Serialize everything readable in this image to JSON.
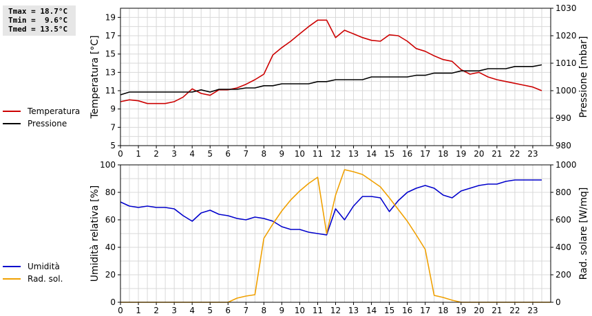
{
  "stats": {
    "tmax": "Tmax = 18.7°C",
    "tmin": "Tmin =  9.6°C",
    "tmed": "Tmed = 13.5°C"
  },
  "legend_top": [
    {
      "label": "Temperatura",
      "color": "#cc0000"
    },
    {
      "label": "Pressione",
      "color": "#000000"
    }
  ],
  "legend_bottom": [
    {
      "label": "Umidità",
      "color": "#0000cc"
    },
    {
      "label": "Rad. sol.",
      "color": "#f0a000"
    }
  ],
  "chart_data": [
    {
      "type": "line",
      "xlabel": "",
      "xlim": [
        0,
        24
      ],
      "xticks": [
        "0",
        "1",
        "2",
        "3",
        "4",
        "5",
        "6",
        "7",
        "8",
        "9",
        "10",
        "11",
        "12",
        "13",
        "14",
        "15",
        "16",
        "17",
        "18",
        "19",
        "20",
        "21",
        "22",
        "23"
      ],
      "ylabel_left": "Temperatura [°C]",
      "ylim_left": [
        5,
        20
      ],
      "yticks_left": [
        "5",
        "7",
        "9",
        "11",
        "13",
        "15",
        "17",
        "19"
      ],
      "ylabel_right": "Pressione [mbar]",
      "ylim_right": [
        980,
        1030
      ],
      "yticks_right": [
        "980",
        "990",
        "1000",
        "1010",
        "1020",
        "1030"
      ],
      "grid": true,
      "series": [
        {
          "name": "Temperatura",
          "axis": "left",
          "color": "#cc0000",
          "x": [
            0,
            0.5,
            1,
            1.5,
            2,
            2.5,
            3,
            3.5,
            4,
            4.5,
            5,
            5.5,
            6,
            6.5,
            7,
            7.5,
            8,
            8.5,
            9,
            9.5,
            10,
            10.5,
            11,
            11.5,
            12,
            12.5,
            13,
            13.5,
            14,
            14.5,
            15,
            15.5,
            16,
            16.5,
            17,
            17.5,
            18,
            18.5,
            19,
            19.5,
            20,
            20.5,
            21,
            21.5,
            22,
            22.5,
            23,
            23.5
          ],
          "values": [
            9.8,
            10.0,
            9.9,
            9.6,
            9.6,
            9.6,
            9.8,
            10.3,
            11.2,
            10.7,
            10.5,
            11.1,
            11.1,
            11.3,
            11.7,
            12.2,
            12.8,
            14.9,
            15.7,
            16.4,
            17.2,
            18.0,
            18.7,
            18.7,
            16.8,
            17.6,
            17.2,
            16.8,
            16.5,
            16.4,
            17.1,
            17.0,
            16.4,
            15.6,
            15.3,
            14.8,
            14.4,
            14.2,
            13.3,
            12.8,
            13.0,
            12.5,
            12.2,
            12.0,
            11.8,
            11.6,
            11.4,
            11.0
          ]
        },
        {
          "name": "Pressione",
          "axis": "right",
          "color": "#000000",
          "x": [
            0,
            0.5,
            1,
            1.5,
            2,
            2.5,
            3,
            3.5,
            4,
            4.5,
            5,
            5.5,
            6,
            6.5,
            7,
            7.5,
            8,
            8.5,
            9,
            9.5,
            10,
            10.5,
            11,
            11.5,
            12,
            12.5,
            13,
            13.5,
            14,
            14.5,
            15,
            15.5,
            16,
            16.5,
            17,
            17.5,
            18,
            18.5,
            19,
            19.5,
            20,
            20.5,
            21,
            21.5,
            22,
            22.5,
            23,
            23.5
          ],
          "values": [
            998.5,
            999.5,
            999.5,
            999.5,
            999.5,
            999.5,
            999.5,
            999.5,
            999.5,
            1000.3,
            999.5,
            1000.5,
            1000.5,
            1000.5,
            1001,
            1001,
            1001.8,
            1001.8,
            1002.5,
            1002.5,
            1002.5,
            1002.5,
            1003.3,
            1003.3,
            1004,
            1004,
            1004,
            1004,
            1005,
            1005,
            1005,
            1005,
            1005,
            1005.6,
            1005.6,
            1006.4,
            1006.4,
            1006.4,
            1007.2,
            1007.2,
            1007.2,
            1008,
            1008,
            1008,
            1008.8,
            1008.8,
            1008.8,
            1009.4
          ]
        }
      ]
    },
    {
      "type": "line",
      "xlabel": "",
      "xlim": [
        0,
        24
      ],
      "xticks": [
        "0",
        "1",
        "2",
        "3",
        "4",
        "5",
        "6",
        "7",
        "8",
        "9",
        "10",
        "11",
        "12",
        "13",
        "14",
        "15",
        "16",
        "17",
        "18",
        "19",
        "20",
        "21",
        "22",
        "23"
      ],
      "ylabel_left": "Umidità relativa [%]",
      "ylim_left": [
        0,
        100
      ],
      "yticks_left": [
        "0",
        "20",
        "40",
        "60",
        "80",
        "100"
      ],
      "ylabel_right": "Rad. solare [W/mq]",
      "ylim_right": [
        0,
        1000
      ],
      "yticks_right": [
        "0",
        "200",
        "400",
        "600",
        "800",
        "1000"
      ],
      "grid": true,
      "series": [
        {
          "name": "Umidità",
          "axis": "left",
          "color": "#0000cc",
          "x": [
            0,
            0.5,
            1,
            1.5,
            2,
            2.5,
            3,
            3.5,
            4,
            4.5,
            5,
            5.5,
            6,
            6.5,
            7,
            7.5,
            8,
            8.5,
            9,
            9.5,
            10,
            10.5,
            11,
            11.5,
            12,
            12.5,
            13,
            13.5,
            14,
            14.5,
            15,
            15.5,
            16,
            16.5,
            17,
            17.5,
            18,
            18.5,
            19,
            19.5,
            20,
            20.5,
            21,
            21.5,
            22,
            22.5,
            23,
            23.5
          ],
          "values": [
            73,
            70,
            69,
            70,
            69,
            69,
            68,
            63,
            59,
            65,
            67,
            64,
            63,
            61,
            60,
            62,
            61,
            59,
            55,
            53,
            53,
            51,
            50,
            49,
            68,
            60,
            70,
            77,
            77,
            76,
            66,
            74,
            80,
            83,
            85,
            83,
            78,
            76,
            81,
            83,
            85,
            86,
            86,
            88,
            89,
            89,
            89,
            89
          ]
        },
        {
          "name": "Rad. sol.",
          "axis": "right",
          "color": "#f0a000",
          "x": [
            0,
            6,
            6.5,
            7,
            7.5,
            8,
            8.5,
            9,
            9.5,
            10,
            10.5,
            11,
            11.5,
            12,
            12.5,
            13,
            13.5,
            14,
            14.5,
            15,
            15.5,
            16,
            16.5,
            17,
            17.5,
            18,
            18.5,
            19,
            24
          ],
          "values": [
            0,
            0,
            30,
            45,
            55,
            465,
            570,
            665,
            745,
            810,
            865,
            910,
            500,
            780,
            965,
            950,
            930,
            885,
            840,
            760,
            675,
            590,
            490,
            385,
            50,
            35,
            15,
            0,
            0
          ]
        }
      ]
    }
  ]
}
